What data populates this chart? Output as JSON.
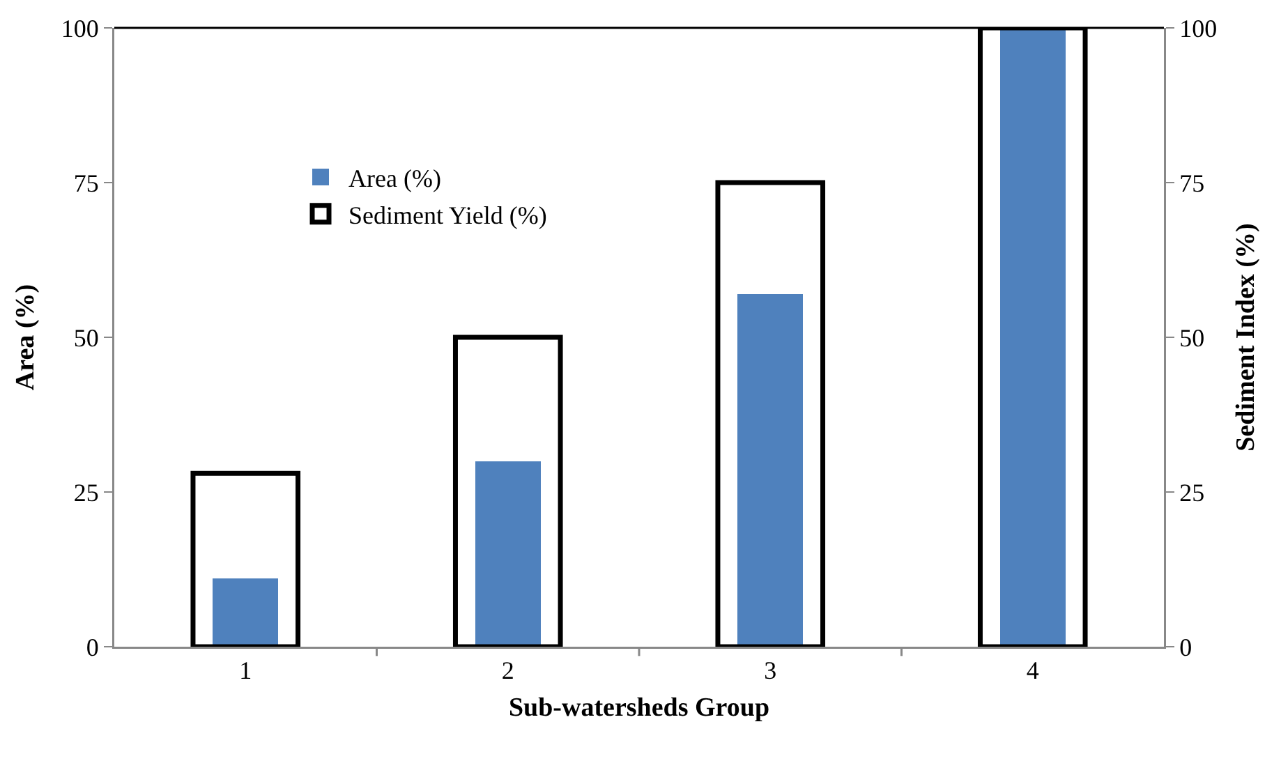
{
  "chart_data": {
    "type": "bar",
    "xlabel": "Sub-watersheds Group",
    "ylabel": "Area (%)",
    "y2label": "Sediment Index (%)",
    "categories": [
      "1",
      "2",
      "3",
      "4"
    ],
    "series": [
      {
        "name": "Area (%)",
        "color": "#4f81bd",
        "values": [
          11,
          30,
          57,
          100
        ]
      },
      {
        "name": "Sediment Yield (%)",
        "color": "#000000",
        "axis": "y2",
        "values": [
          28,
          50,
          75,
          100
        ]
      }
    ],
    "ylim": [
      0,
      100
    ],
    "yticks": [
      0,
      25,
      50,
      75,
      100
    ],
    "y2lim": [
      0,
      100
    ],
    "y2ticks": [
      0,
      25,
      50,
      75,
      100
    ],
    "grid": false,
    "legend": "top left"
  }
}
